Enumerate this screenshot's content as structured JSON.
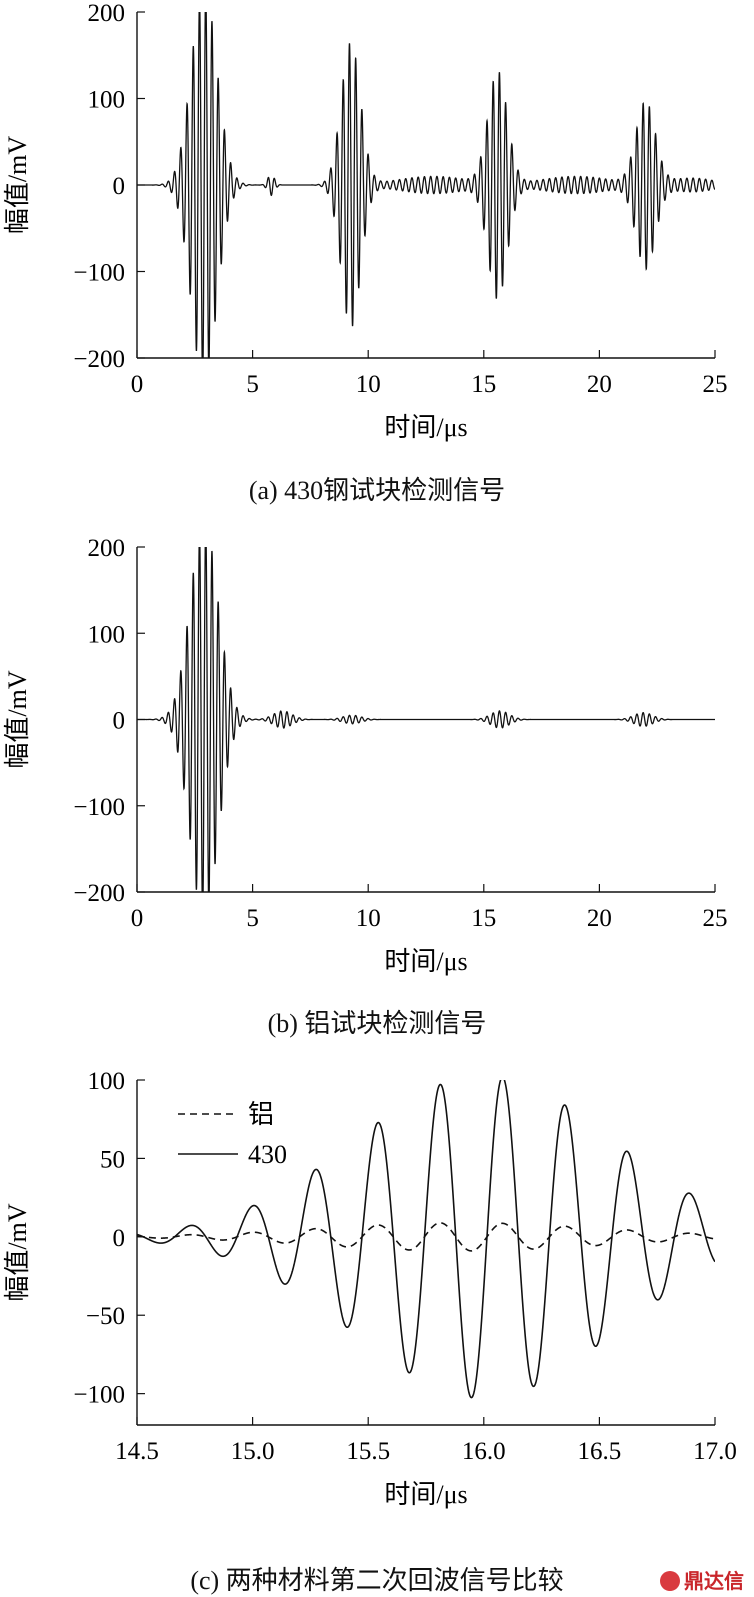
{
  "chart_data": [
    {
      "type": "line",
      "caption": "(a) 430钢试块检测信号",
      "xlabel": "时间/μs",
      "ylabel": "幅值/mV",
      "xlim": [
        0,
        25
      ],
      "ylim": [
        -200,
        200
      ],
      "xticks": [
        0,
        5,
        10,
        15,
        20,
        25
      ],
      "yticks": [
        -200,
        -100,
        0,
        100,
        200
      ],
      "ytick_labels": [
        "−200",
        "−100",
        "0",
        "100",
        "200"
      ],
      "grid": false,
      "series": [
        {
          "frequency_mhz": 3.7,
          "bursts": [
            {
              "center": 2.9,
              "sigma": 0.55,
              "amplitude": 230
            },
            {
              "center": 9.25,
              "sigma": 0.42,
              "amplitude": 165
            },
            {
              "center": 15.6,
              "sigma": 0.42,
              "amplitude": 130
            },
            {
              "center": 22.0,
              "sigma": 0.42,
              "amplitude": 95
            },
            {
              "center": 5.8,
              "sigma": 0.15,
              "amplitude": 12
            },
            {
              "center": 12.8,
              "sigma": 1.5,
              "amplitude": 10
            },
            {
              "center": 19.0,
              "sigma": 1.5,
              "amplitude": 10
            },
            {
              "center": 24.0,
              "sigma": 1.0,
              "amplitude": 8
            }
          ]
        }
      ]
    },
    {
      "type": "line",
      "caption": "(b) 铝试块检测信号",
      "xlabel": "时间/μs",
      "ylabel": "幅值/mV",
      "xlim": [
        0,
        25
      ],
      "ylim": [
        -200,
        200
      ],
      "xticks": [
        0,
        5,
        10,
        15,
        20,
        25
      ],
      "yticks": [
        -200,
        -100,
        0,
        100,
        200
      ],
      "ytick_labels": [
        "−200",
        "−100",
        "0",
        "100",
        "200"
      ],
      "grid": false,
      "series": [
        {
          "frequency_mhz": 3.7,
          "bursts": [
            {
              "center": 2.9,
              "sigma": 0.6,
              "amplitude": 230
            },
            {
              "center": 6.3,
              "sigma": 0.4,
              "amplitude": 10
            },
            {
              "center": 9.3,
              "sigma": 0.4,
              "amplitude": 5
            },
            {
              "center": 15.7,
              "sigma": 0.4,
              "amplitude": 10
            },
            {
              "center": 21.9,
              "sigma": 0.4,
              "amplitude": 8
            }
          ]
        }
      ]
    },
    {
      "type": "line",
      "caption": "(c) 两种材料第二次回波信号比较",
      "xlabel": "时间/μs",
      "ylabel": "幅值/mV",
      "xlim": [
        14.5,
        17.0
      ],
      "ylim": [
        -120,
        100
      ],
      "xticks": [
        14.5,
        15.0,
        15.5,
        16.0,
        16.5,
        17.0
      ],
      "xtick_labels": [
        "14.5",
        "15.0",
        "15.5",
        "16.0",
        "16.5",
        "17.0"
      ],
      "yticks": [
        -100,
        -50,
        0,
        50,
        100
      ],
      "ytick_labels": [
        "−100",
        "−50",
        "0",
        "50",
        "100"
      ],
      "grid": false,
      "legend": "top-left",
      "series": [
        {
          "name": "铝",
          "style": "dashed",
          "frequency_mhz": 3.7,
          "phase_ref": 14.73,
          "bursts": [
            {
              "center": 15.9,
              "sigma": 0.6,
              "amplitude": 9
            }
          ]
        },
        {
          "name": "430",
          "style": "solid",
          "frequency_mhz": 3.7,
          "phase_ref": 14.73,
          "bursts": [
            {
              "center": 16.0,
              "sigma": 0.55,
              "amplitude": 103
            }
          ]
        }
      ]
    }
  ],
  "watermark": {
    "text": "鼎达信"
  }
}
